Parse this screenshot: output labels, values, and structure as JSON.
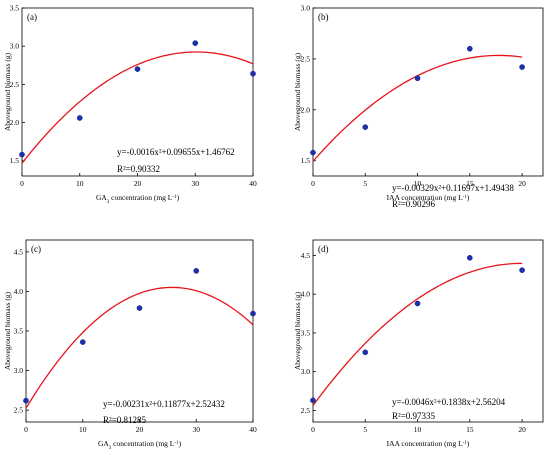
{
  "chart_data": [
    {
      "type": "scatter",
      "panel_label": "(a)",
      "xlabel_parts": [
        "GA",
        "3",
        " concentration (mg L",
        "-1",
        ")"
      ],
      "ylabel": "Aboveground biomass (g)",
      "x_ticks": [
        0,
        10,
        20,
        30,
        40
      ],
      "y_ticks": [
        1.5,
        2.0,
        2.5,
        3.0,
        3.5
      ],
      "x_tick_labels": [
        "0",
        "10",
        "20",
        "30",
        "40"
      ],
      "y_tick_labels": [
        "1.5",
        "2.0",
        "2.5",
        "3.0",
        "3.5"
      ],
      "xlim": [
        0,
        40
      ],
      "ylim": [
        1.3,
        3.5
      ],
      "x": [
        0,
        10,
        20,
        30,
        40
      ],
      "y": [
        1.58,
        2.06,
        2.7,
        3.04,
        2.64
      ],
      "fit": {
        "a": -0.0016,
        "b": 0.09655,
        "c": 1.46762,
        "x_range": [
          0,
          40
        ]
      },
      "equation": "y=-0.0016x²+0.09655x+1.46762",
      "r2": "R²=0.90332"
    },
    {
      "type": "scatter",
      "panel_label": "(b)",
      "xlabel_parts": [
        "IAA concentration (mg L",
        "-1",
        ")"
      ],
      "ylabel": "Aboveground biomass (g)",
      "x_ticks": [
        0,
        5,
        10,
        15,
        20
      ],
      "y_ticks": [
        1.5,
        2.0,
        2.5,
        3.0
      ],
      "x_tick_labels": [
        "0",
        "5",
        "10",
        "15",
        "20"
      ],
      "y_tick_labels": [
        "1.5",
        "2.0",
        "2.5",
        "3.0"
      ],
      "xlim": [
        0,
        22
      ],
      "ylim": [
        1.35,
        3.0
      ],
      "x": [
        0,
        5,
        10,
        15,
        20
      ],
      "y": [
        1.58,
        1.83,
        2.31,
        2.6,
        2.42
      ],
      "fit": {
        "a": -0.00329,
        "b": 0.11697,
        "c": 1.49438,
        "x_range": [
          0,
          20
        ]
      },
      "equation": "y=-0.00329x²+0.11697x+1.49438",
      "r2": "R²=0.90296"
    },
    {
      "type": "scatter",
      "panel_label": "(c)",
      "xlabel_parts": [
        "GA",
        "3",
        " concentration (mg L",
        "-1",
        ")"
      ],
      "ylabel": "Aboveground biomass (g)",
      "x_ticks": [
        0,
        10,
        20,
        30,
        40
      ],
      "y_ticks": [
        2.5,
        3.0,
        3.5,
        4.0,
        4.5
      ],
      "x_tick_labels": [
        "0",
        "10",
        "20",
        "30",
        "40"
      ],
      "y_tick_labels": [
        "2.5",
        "3.0",
        "3.5",
        "4.0",
        "4.5"
      ],
      "xlim": [
        0,
        40
      ],
      "ylim": [
        2.35,
        4.65
      ],
      "x": [
        0,
        10,
        20,
        30,
        40
      ],
      "y": [
        2.62,
        3.36,
        3.79,
        4.26,
        3.72
      ],
      "fit": {
        "a": -0.00231,
        "b": 0.11877,
        "c": 2.52432,
        "x_range": [
          0,
          40
        ]
      },
      "equation": "y=-0.00231x²+0.11877x+2.52432",
      "r2": "R²=0.81285"
    },
    {
      "type": "scatter",
      "panel_label": "(d)",
      "xlabel_parts": [
        "IAA concentration (mg L",
        "-1",
        ")"
      ],
      "ylabel": "Aboveground biomass (g)",
      "x_ticks": [
        0,
        5,
        10,
        15,
        20
      ],
      "y_ticks": [
        2.5,
        3.0,
        3.5,
        4.0,
        4.5
      ],
      "x_tick_labels": [
        "0",
        "5",
        "10",
        "15",
        "20"
      ],
      "y_tick_labels": [
        "2.5",
        "3.0",
        "3.5",
        "4.0",
        "4.5"
      ],
      "xlim": [
        0,
        22
      ],
      "ylim": [
        2.35,
        4.7
      ],
      "x": [
        0,
        5,
        10,
        15,
        20
      ],
      "y": [
        2.63,
        3.25,
        3.88,
        4.47,
        4.31
      ],
      "fit": {
        "a": -0.0046,
        "b": 0.1838,
        "c": 2.56204,
        "x_range": [
          0,
          20
        ]
      },
      "equation": "y=-0.0046x²+0.1838x+2.56204",
      "r2": "R²=0.97335"
    }
  ],
  "colors": {
    "fit_line": "#e8141c",
    "marker": "#1c2fb0",
    "axis": "#000000"
  }
}
